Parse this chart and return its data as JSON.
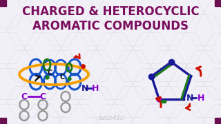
{
  "title_line1": "CHARGED & HETEROCYCLIC",
  "title_line2": "AROMATIC COMPOUNDS",
  "title_color": "#7b0d5e",
  "bg_color": "#f2f0f7",
  "hex_color": "#dddae8",
  "watermark": "Leah4Sci",
  "watermark_color": "#bbbbbb",
  "corner_color": "#6b0f50",
  "orange": "#f5a000",
  "blue": "#1555cc",
  "green": "#1a7a1a",
  "red": "#cc1100",
  "purple": "#8800cc",
  "gray": "#999999",
  "black": "#111111",
  "navy": "#1a1a99"
}
